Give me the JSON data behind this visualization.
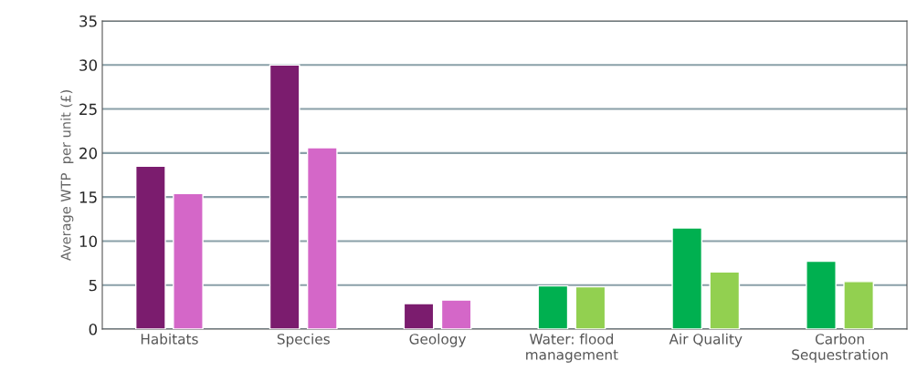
{
  "chart_data": {
    "type": "bar",
    "ylabel": "Average WTP  per unit (£)",
    "categories": [
      "Habitats",
      "Species",
      "Geology",
      "Water: flood\nmanagement",
      "Air Quality",
      "Carbon\nSequestration"
    ],
    "series": [
      {
        "colors": [
          "#7b1c6e",
          "#7b1c6e",
          "#7b1c6e",
          "#00b050",
          "#00b050",
          "#00b050"
        ],
        "values": [
          18.5,
          30.0,
          2.9,
          4.9,
          11.5,
          7.7
        ]
      },
      {
        "colors": [
          "#d467c8",
          "#d467c8",
          "#d467c8",
          "#92d050",
          "#92d050",
          "#92d050"
        ],
        "values": [
          15.4,
          20.6,
          3.3,
          4.8,
          6.5,
          5.4
        ]
      }
    ],
    "ylim": [
      0,
      35
    ],
    "yticks": [
      0,
      5,
      10,
      15,
      20,
      25,
      30,
      35
    ],
    "grid": "y",
    "legend": false
  }
}
